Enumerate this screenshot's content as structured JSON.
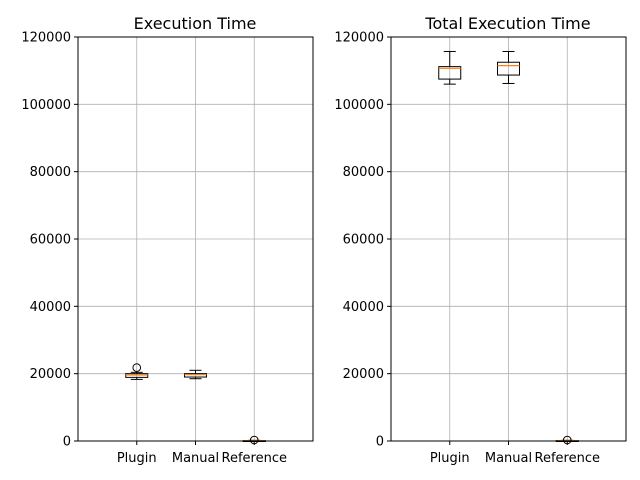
{
  "chart_data": [
    {
      "type": "box",
      "title": "Execution Time",
      "categories": [
        "Plugin",
        "Manual",
        "Reference"
      ],
      "ylim": [
        0,
        120000
      ],
      "yticks": [
        0,
        20000,
        40000,
        60000,
        80000,
        100000,
        120000
      ],
      "yticklabels": [
        "0",
        "20000",
        "40000",
        "60000",
        "80000",
        "100000",
        "120000"
      ],
      "grid": true,
      "boxes": [
        {
          "whislo": 18300,
          "q1": 18900,
          "med": 19600,
          "q3": 20000,
          "whishi": 20400,
          "fliers": [
            21800
          ]
        },
        {
          "whislo": 18500,
          "q1": 19000,
          "med": 19700,
          "q3": 20000,
          "whishi": 21000,
          "fliers": []
        },
        {
          "whislo": 0,
          "q1": 50,
          "med": 100,
          "q3": 150,
          "whishi": 200,
          "fliers": [
            300
          ]
        }
      ]
    },
    {
      "type": "box",
      "title": "Total Execution Time",
      "categories": [
        "Plugin",
        "Manual",
        "Reference"
      ],
      "ylim": [
        0,
        120000
      ],
      "yticks": [
        0,
        20000,
        40000,
        60000,
        80000,
        100000,
        120000
      ],
      "yticklabels": [
        "0",
        "20000",
        "40000",
        "60000",
        "80000",
        "100000",
        "120000"
      ],
      "grid": true,
      "boxes": [
        {
          "whislo": 106000,
          "q1": 107500,
          "med": 110700,
          "q3": 111200,
          "whishi": 115700,
          "fliers": []
        },
        {
          "whislo": 106200,
          "q1": 108700,
          "med": 111500,
          "q3": 112500,
          "whishi": 115700,
          "fliers": []
        },
        {
          "whislo": 0,
          "q1": 50,
          "med": 100,
          "q3": 150,
          "whishi": 200,
          "fliers": [
            300
          ]
        }
      ]
    }
  ],
  "colors": {
    "median": "#ff7f0e",
    "grid": "#b0b0b0",
    "box": "#000000"
  }
}
